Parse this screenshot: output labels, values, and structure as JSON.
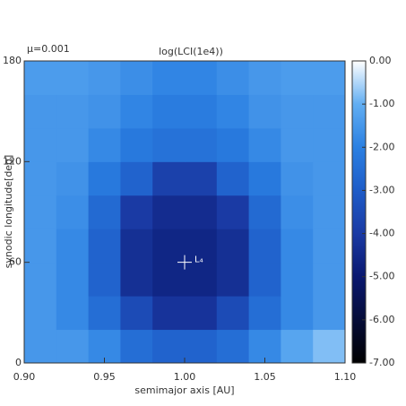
{
  "chart_data": {
    "type": "heatmap",
    "title": "log(LCI(1e4))",
    "corner_label": "μ=0.001",
    "x_label": "semimajor axis [AU]",
    "y_label": "synodic longitude[deg]",
    "x_bins": [
      0.9,
      0.92,
      0.94,
      0.96,
      0.98,
      1.0,
      1.02,
      1.04,
      1.06,
      1.08,
      1.1
    ],
    "y_bins": [
      0,
      20,
      40,
      60,
      80,
      100,
      120,
      140,
      160,
      180
    ],
    "z": [
      [
        -1.5,
        -1.5,
        -1.8,
        -2.5,
        -2.8,
        -2.8,
        -2.5,
        -1.8,
        -1.2,
        -0.8
      ],
      [
        -1.5,
        -1.8,
        -2.5,
        -3.5,
        -4.2,
        -4.2,
        -3.5,
        -2.5,
        -1.8,
        -1.5
      ],
      [
        -1.5,
        -1.8,
        -2.8,
        -4.3,
        -4.6,
        -4.6,
        -4.3,
        -2.8,
        -1.8,
        -1.5
      ],
      [
        -1.5,
        -1.8,
        -2.8,
        -4.3,
        -4.6,
        -4.6,
        -4.3,
        -2.8,
        -1.8,
        -1.5
      ],
      [
        -1.5,
        -1.7,
        -2.6,
        -4.0,
        -4.4,
        -4.4,
        -4.0,
        -2.6,
        -1.7,
        -1.5
      ],
      [
        -1.5,
        -1.6,
        -2.2,
        -2.8,
        -3.8,
        -3.8,
        -2.8,
        -2.2,
        -1.6,
        -1.5
      ],
      [
        -1.5,
        -1.5,
        -1.8,
        -2.2,
        -2.4,
        -2.4,
        -2.2,
        -1.8,
        -1.5,
        -1.5
      ],
      [
        -1.5,
        -1.5,
        -1.6,
        -1.9,
        -2.1,
        -2.1,
        -1.9,
        -1.6,
        -1.5,
        -1.5
      ],
      [
        -1.4,
        -1.4,
        -1.5,
        -1.7,
        -1.9,
        -1.9,
        -1.7,
        -1.5,
        -1.4,
        -1.4
      ]
    ],
    "xlim": [
      0.9,
      1.1
    ],
    "xticks": [
      {
        "value": 0.9,
        "label": "0.90"
      },
      {
        "value": 0.95,
        "label": "0.95"
      },
      {
        "value": 1.0,
        "label": "1.00"
      },
      {
        "value": 1.05,
        "label": "1.05"
      },
      {
        "value": 1.1,
        "label": "1.10"
      }
    ],
    "ylim": [
      0,
      180
    ],
    "yticks": [
      0,
      60,
      120,
      180
    ],
    "zlim": [
      -7,
      0
    ],
    "zticks": [
      {
        "value": 0,
        "label": "0.00"
      },
      {
        "value": -1,
        "label": "-1.00"
      },
      {
        "value": -2,
        "label": "-2.00"
      },
      {
        "value": -3,
        "label": "-3.00"
      },
      {
        "value": -4,
        "label": "-4.00"
      },
      {
        "value": -5,
        "label": "-5.00"
      },
      {
        "value": -6,
        "label": "-6.00"
      },
      {
        "value": -7,
        "label": "-7.00"
      }
    ],
    "colormap": [
      {
        "value": -7,
        "color": "#000000"
      },
      {
        "value": -5,
        "color": "#0a1870"
      },
      {
        "value": -4,
        "color": "#1a3aa4"
      },
      {
        "value": -3,
        "color": "#1e5cc8"
      },
      {
        "value": -2,
        "color": "#2b80e2"
      },
      {
        "value": -1,
        "color": "#62aef2"
      },
      {
        "value": 0,
        "color": "#ffffff"
      }
    ],
    "annotations": [
      {
        "text": "L₄",
        "x": 1.0,
        "y": 60
      }
    ]
  }
}
